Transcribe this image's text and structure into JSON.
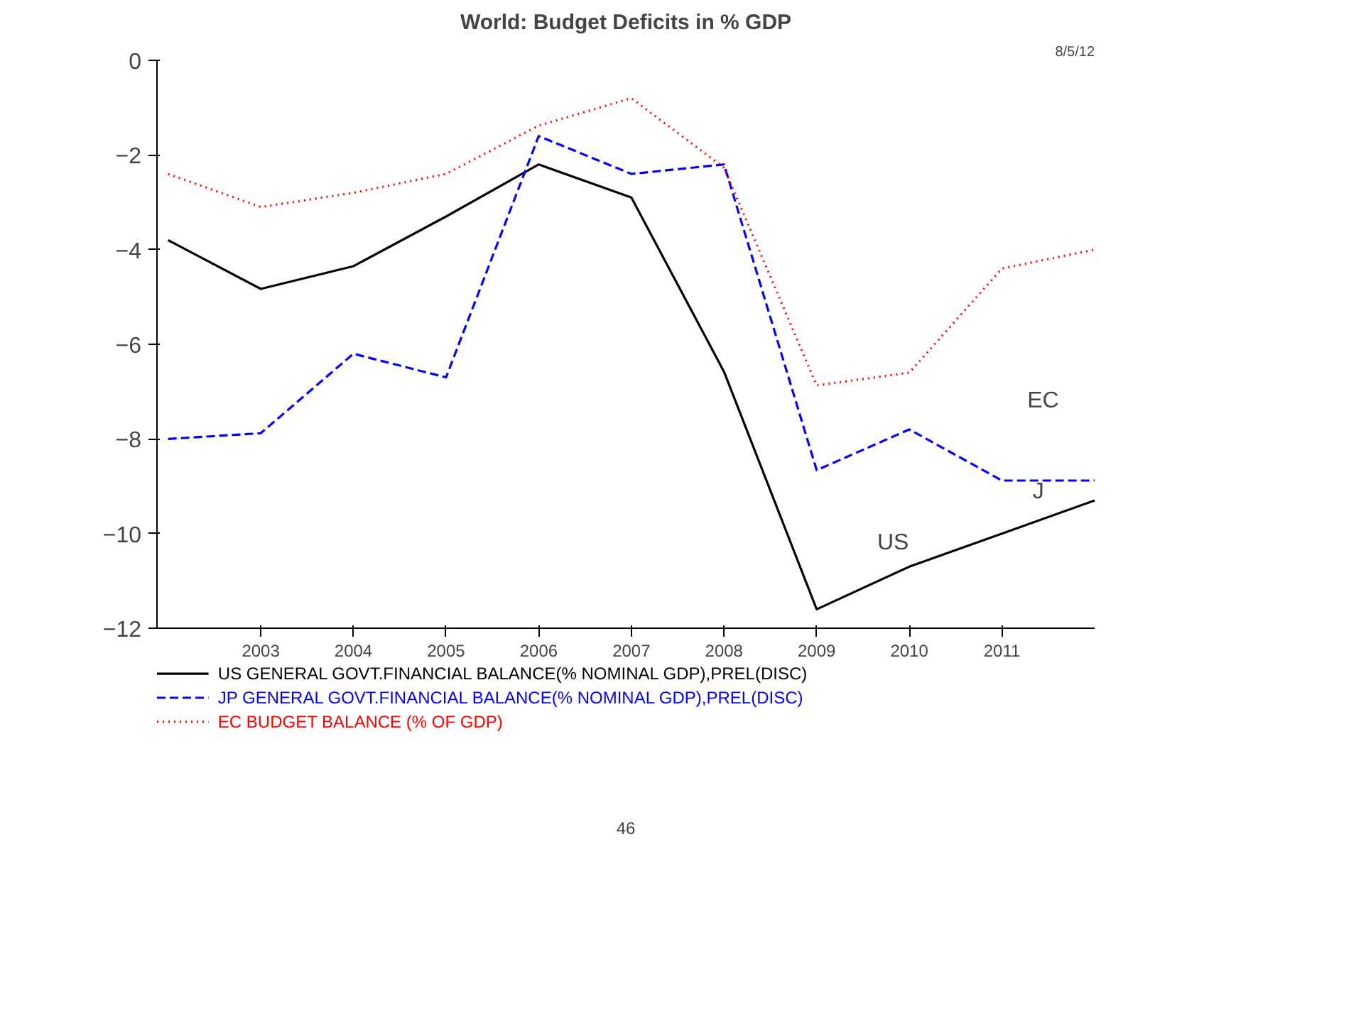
{
  "chart_data": {
    "type": "line",
    "title": "World: Budget Deficits in % GDP",
    "x": [
      2002,
      2003,
      2004,
      2005,
      2006,
      2007,
      2008,
      2009,
      2010,
      2011,
      2012
    ],
    "series": [
      {
        "name": "US GENERAL GOVT.FINANCIAL BALANCE(% NOMINAL GDP),PREL(DISC)",
        "color": "#000000",
        "line_style": "solid",
        "values": [
          -3.8,
          -4.83,
          -4.35,
          -3.3,
          -2.2,
          -2.9,
          -6.58,
          -11.6,
          -10.7,
          -10.0,
          -9.3
        ]
      },
      {
        "name": "JP GENERAL GOVT.FINANCIAL BALANCE(% NOMINAL GDP),PREL(DISC)",
        "color": "#0000ff",
        "line_style": "dashed",
        "values": [
          -8.0,
          -7.88,
          -6.2,
          -6.7,
          -1.6,
          -2.4,
          -2.2,
          -8.66,
          -7.8,
          -8.88,
          -8.88
        ]
      },
      {
        "name": "EC BUDGET BALANCE (% OF GDP)",
        "color": "#ff0000",
        "line_style": "dotted",
        "values": [
          -2.4,
          -3.1,
          -2.8,
          -2.4,
          -1.38,
          -0.8,
          -2.27,
          -6.87,
          -6.6,
          -4.4,
          -4.0
        ]
      }
    ],
    "xlim": [
      2001.88,
      2012
    ],
    "xticks": [
      2003,
      2004,
      2005,
      2006,
      2007,
      2008,
      2009,
      2010,
      2011
    ],
    "ylim": [
      -12,
      0
    ],
    "yticks": [
      0,
      -2,
      -4,
      -6,
      -8,
      -10,
      -12
    ],
    "legend": "bottom",
    "annotations": [
      "EC",
      "J",
      "US",
      "8/5/12",
      "46"
    ]
  }
}
